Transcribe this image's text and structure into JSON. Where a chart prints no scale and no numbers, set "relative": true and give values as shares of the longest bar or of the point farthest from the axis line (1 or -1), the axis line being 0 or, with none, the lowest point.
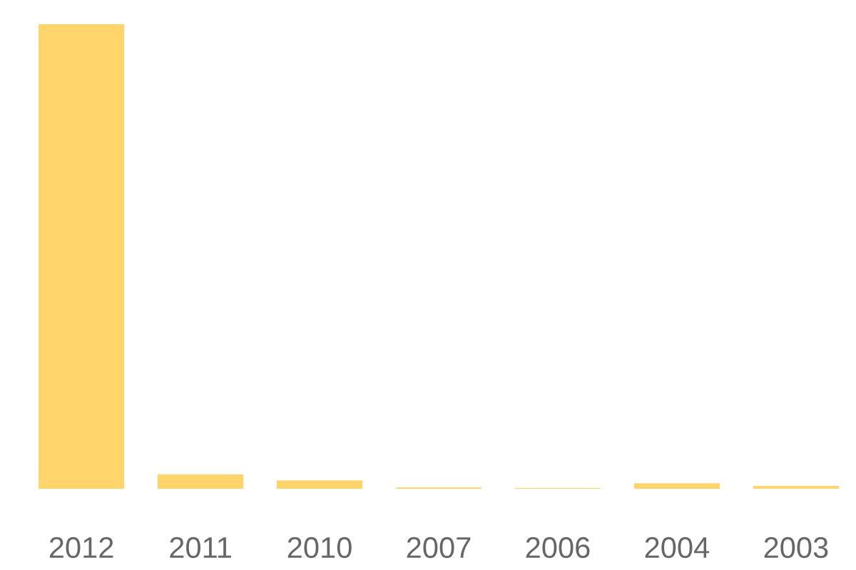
{
  "chart_data": {
    "type": "bar",
    "relative": true,
    "categories": [
      "2012",
      "2011",
      "2010",
      "2007",
      "2006",
      "2004",
      "2003"
    ],
    "values": [
      1,
      0.031,
      0.018,
      0.003,
      0.002,
      0.012,
      0.006
    ],
    "color": "#ffd56b",
    "grid": false,
    "legend": false
  }
}
